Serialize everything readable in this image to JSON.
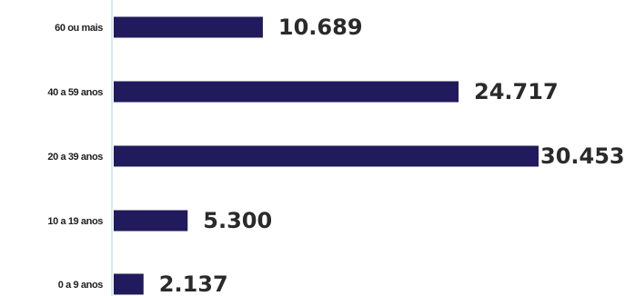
{
  "colors": {
    "bar": "#211a5c",
    "axis": "#d6e6f4",
    "background": "#ffffff"
  },
  "chart_data": {
    "type": "bar",
    "orientation": "horizontal",
    "categories": [
      "60 ou mais",
      "40 a 59 anos",
      "20 a 39 anos",
      "10 a 19 anos",
      "0 a 9 anos"
    ],
    "values": [
      10689,
      24717,
      30453,
      5300,
      2137
    ],
    "value_labels": [
      "10.689",
      "24.717",
      "30.453",
      "5.300",
      "2.137"
    ],
    "title": "",
    "xlabel": "",
    "ylabel": "",
    "xlim": [
      0,
      30453
    ],
    "grid": false,
    "legend": "none"
  }
}
